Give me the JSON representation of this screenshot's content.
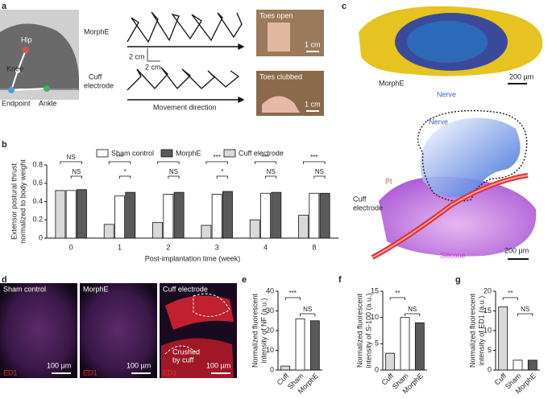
{
  "panel_labels": [
    "a",
    "b",
    "c",
    "d",
    "e",
    "f",
    "g"
  ],
  "a": {
    "hip": "Hip",
    "knee": "Knee",
    "endpoint": "Endpoint",
    "ankle": "Ankle",
    "morphe": "MorphE",
    "cuff": [
      "Cuff",
      "electrode"
    ],
    "scale_v": "2 cm",
    "scale_h": "2 cm",
    "direction": "Movement direction",
    "photo1": "Toes open",
    "photo1_scale": "1 cm",
    "photo2": "Toes clubbed",
    "photo2_scale": "1 cm"
  },
  "c": {
    "morphe": "MorphE",
    "nerve_top": "Nerve",
    "scale_top": "200 µm",
    "nerve": "Nerve",
    "pt": "Pt",
    "cuff": [
      "Cuff",
      "electrode"
    ],
    "silicone": "Silicone",
    "scale_bottom": "200 µm"
  },
  "d": {
    "titles": [
      "Sham control",
      "MorphE",
      "Cuff electrode"
    ],
    "stain": [
      "ED1",
      "ED1",
      "ED1"
    ],
    "scales": [
      "100 µm",
      "100 µm",
      "100 µm"
    ],
    "crushed": [
      "Crushed",
      "by cuff"
    ]
  },
  "chart_data": [
    {
      "type": "grouped-bar",
      "xlabel": "Post-implantation time (week)",
      "ylabel": [
        "Extensor postural thrust",
        "normalized to body weight"
      ],
      "categories": [
        "0",
        "1",
        "2",
        "3",
        "4",
        "8"
      ],
      "series": [
        {
          "name": "Sham control",
          "color": "#ffffff",
          "values": [
            0.52,
            0.46,
            0.48,
            0.48,
            0.49,
            0.49
          ]
        },
        {
          "name": "MorphE",
          "color": "#5a5a5a",
          "values": [
            0.53,
            0.5,
            0.5,
            0.51,
            0.5,
            0.49
          ]
        },
        {
          "name": "Cuff electrode",
          "color": "#d9d9d9",
          "values": [
            0.52,
            0.15,
            0.17,
            0.14,
            0.2,
            0.25
          ]
        }
      ],
      "ylim": [
        0,
        0.8
      ],
      "yticks": [
        0,
        0.2,
        0.4,
        0.6,
        0.8
      ],
      "significance": [
        [
          "NS",
          "NS"
        ],
        [
          "***",
          "*"
        ],
        [
          "***",
          "NS"
        ],
        [
          "***",
          "*"
        ],
        [
          "***",
          "NS"
        ],
        [
          "***",
          "NS"
        ]
      ]
    },
    {
      "type": "bar",
      "ylabel": [
        "Normalized fluorescent",
        "intensity of NF (a.u.)"
      ],
      "categories": [
        "Cuff",
        "Sham",
        "MorphE"
      ],
      "values": [
        2,
        26,
        25
      ],
      "colors": [
        "#d9d9d9",
        "#ffffff",
        "#5a5a5a"
      ],
      "ylim": [
        0,
        40
      ],
      "yticks": [
        0,
        10,
        20,
        30,
        40
      ],
      "significance": [
        "***",
        "NS"
      ]
    },
    {
      "type": "bar",
      "ylabel": [
        "Normalized fluorescent",
        "intensity of S-100 (a.u.)"
      ],
      "categories": [
        "Cuff",
        "Sham",
        "MorphE"
      ],
      "values": [
        3.2,
        10,
        9
      ],
      "colors": [
        "#d9d9d9",
        "#ffffff",
        "#5a5a5a"
      ],
      "ylim": [
        0,
        15
      ],
      "yticks": [
        0,
        5,
        10,
        15
      ],
      "significance": [
        "**",
        "NS"
      ]
    },
    {
      "type": "bar",
      "ylabel": [
        "Normalized fluorescent",
        "intensity of ED1 (a.u.)"
      ],
      "categories": [
        "Cuff",
        "Sham",
        "MorphE"
      ],
      "values": [
        16,
        2.5,
        2.5
      ],
      "colors": [
        "#d9d9d9",
        "#ffffff",
        "#5a5a5a"
      ],
      "ylim": [
        0,
        20
      ],
      "yticks": [
        0,
        5,
        10,
        15,
        20
      ],
      "significance": [
        "**",
        "NS"
      ]
    }
  ]
}
